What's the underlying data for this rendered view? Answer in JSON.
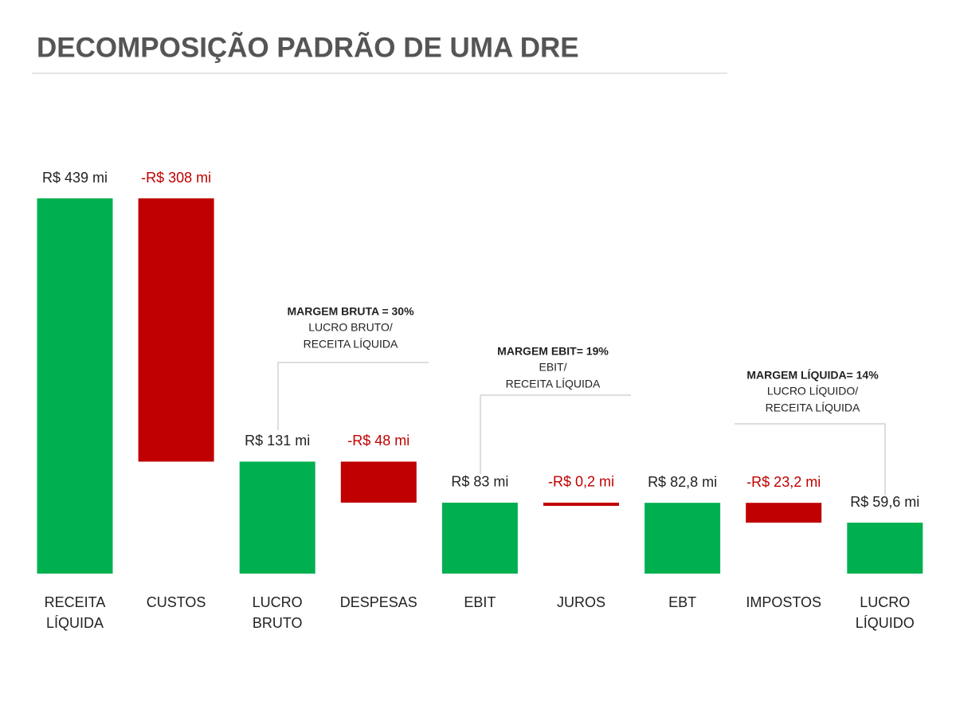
{
  "chart_data": {
    "type": "waterfall",
    "title": "DECOMPOSIÇÃO PADRÃO DE UMA DRE",
    "categories": [
      "RECEITA LÍQUIDA",
      "CUSTOS",
      "LUCRO BRUTO",
      "DESPESAS",
      "EBIT",
      "JUROS",
      "EBT",
      "IMPOSTOS",
      "LUCRO LÍQUIDO"
    ],
    "values": [
      439,
      -308,
      131,
      -48,
      83,
      -0.2,
      82.8,
      -23.2,
      59.6
    ],
    "value_labels": [
      "R$ 439 mi",
      "-R$ 308 mi",
      "R$ 131 mi",
      "-R$ 48 mi",
      "R$ 83 mi",
      "-R$ 0,2 mi",
      "R$ 82,8 mi",
      "-R$ 23,2 mi",
      "R$ 59,6 mi"
    ],
    "is_total": [
      true,
      false,
      true,
      false,
      true,
      false,
      true,
      false,
      true
    ],
    "positive_color": "#00b050",
    "negative_color": "#c00000",
    "annotations": [
      {
        "title": "MARGEM BRUTA =  30%",
        "lines": [
          "LUCRO BRUTO/",
          "RECEITA LÍQUIDA"
        ]
      },
      {
        "title": "MARGEM EBIT= 19%",
        "lines": [
          "EBIT/",
          "RECEITA LÍQUIDA"
        ]
      },
      {
        "title": "MARGEM LÍQUIDA= 14%",
        "lines": [
          "LUCRO LÍQUIDO/",
          "RECEITA LÍQUIDA"
        ]
      }
    ]
  }
}
